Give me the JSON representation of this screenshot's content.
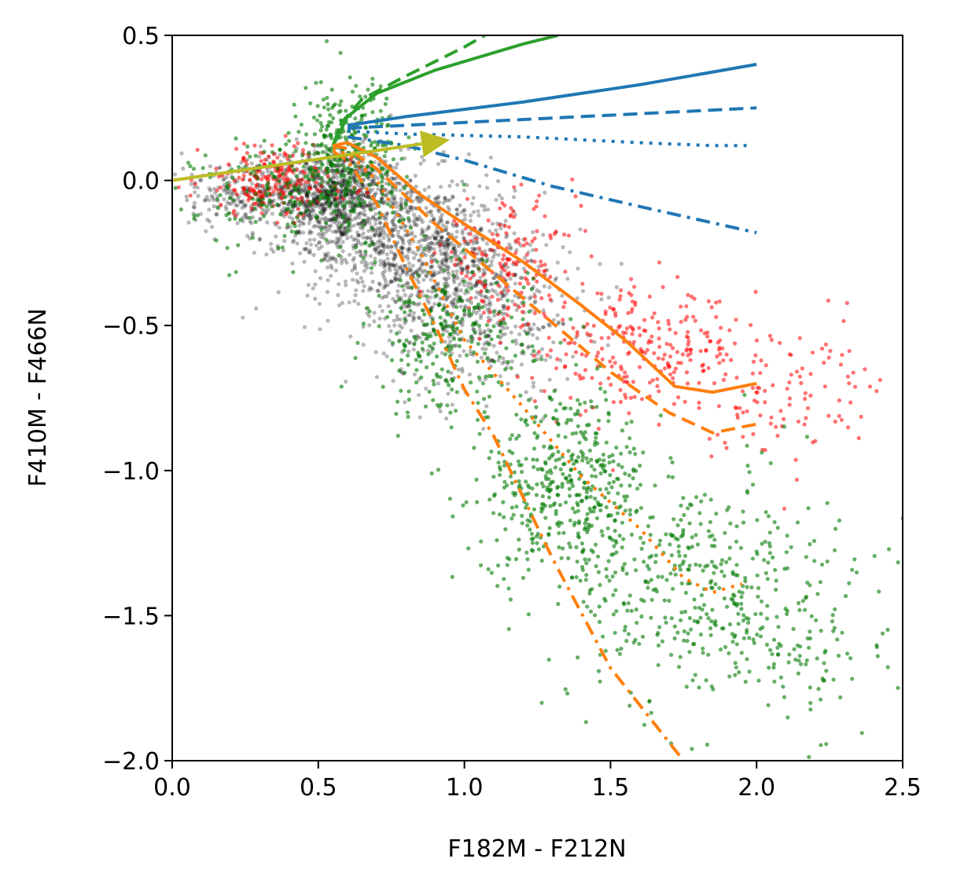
{
  "chart_data": {
    "type": "scatter",
    "title": "",
    "xlabel": "F182M - F212N",
    "ylabel": "F410M - F466N",
    "xlim": [
      0.0,
      2.5
    ],
    "ylim": [
      -2.0,
      0.5
    ],
    "xticks": [
      0.0,
      0.5,
      1.0,
      1.5,
      2.0,
      2.5
    ],
    "xtick_labels": [
      "0.0",
      "0.5",
      "1.0",
      "1.5",
      "2.0",
      "2.5"
    ],
    "yticks": [
      0.5,
      0.0,
      -0.5,
      -1.0,
      -1.5,
      -2.0
    ],
    "ytick_labels": [
      "0.5",
      "0.0",
      "−0.5",
      "−1.0",
      "−1.5",
      "−2.0"
    ],
    "grid": false,
    "legend": "none",
    "scatter_groups": [
      {
        "color": "#000000",
        "opacity": 0.28,
        "clouds": [
          {
            "cx": 0.55,
            "cy": -0.05,
            "sx": 0.12,
            "sy": 0.08,
            "n": 900
          },
          {
            "cx": 0.82,
            "cy": -0.22,
            "sx": 0.18,
            "sy": 0.12,
            "n": 900
          },
          {
            "cx": 1.05,
            "cy": -0.45,
            "sx": 0.17,
            "sy": 0.14,
            "n": 500
          },
          {
            "cx": 0.22,
            "cy": -0.05,
            "sx": 0.12,
            "sy": 0.06,
            "n": 200
          }
        ]
      },
      {
        "color": "#ff0000",
        "opacity": 0.55,
        "clouds": [
          {
            "cx": 0.35,
            "cy": 0.0,
            "sx": 0.13,
            "sy": 0.06,
            "n": 220
          },
          {
            "cx": 1.15,
            "cy": -0.28,
            "sx": 0.12,
            "sy": 0.1,
            "n": 160
          },
          {
            "cx": 1.6,
            "cy": -0.58,
            "sx": 0.18,
            "sy": 0.1,
            "n": 230
          },
          {
            "cx": 2.05,
            "cy": -0.72,
            "sx": 0.22,
            "sy": 0.12,
            "n": 130
          }
        ]
      },
      {
        "color": "#007a00",
        "opacity": 0.6,
        "clouds": [
          {
            "cx": 0.6,
            "cy": 0.12,
            "sx": 0.08,
            "sy": 0.12,
            "n": 260
          },
          {
            "cx": 0.45,
            "cy": -0.05,
            "sx": 0.18,
            "sy": 0.1,
            "n": 220
          },
          {
            "cx": 0.95,
            "cy": -0.55,
            "sx": 0.14,
            "sy": 0.13,
            "n": 260
          },
          {
            "cx": 1.35,
            "cy": -1.05,
            "sx": 0.15,
            "sy": 0.16,
            "n": 450
          },
          {
            "cx": 1.8,
            "cy": -1.4,
            "sx": 0.22,
            "sy": 0.2,
            "n": 420
          },
          {
            "cx": 2.2,
            "cy": -1.6,
            "sx": 0.15,
            "sy": 0.2,
            "n": 80
          }
        ]
      }
    ],
    "lines": [
      {
        "color": "#2ca02c",
        "dash": "",
        "points": [
          [
            0.55,
            0.12
          ],
          [
            0.6,
            0.22
          ],
          [
            0.7,
            0.3
          ],
          [
            0.9,
            0.38
          ],
          [
            1.2,
            0.47
          ],
          [
            1.32,
            0.5
          ]
        ]
      },
      {
        "color": "#2ca02c",
        "dash": "18,9",
        "points": [
          [
            0.55,
            0.12
          ],
          [
            0.58,
            0.2
          ],
          [
            0.65,
            0.28
          ],
          [
            0.8,
            0.36
          ],
          [
            1.0,
            0.46
          ],
          [
            1.07,
            0.5
          ]
        ]
      },
      {
        "color": "#1f77b4",
        "dash": "",
        "points": [
          [
            0.6,
            0.19
          ],
          [
            0.8,
            0.22
          ],
          [
            1.2,
            0.27
          ],
          [
            1.6,
            0.33
          ],
          [
            2.0,
            0.4
          ]
        ]
      },
      {
        "color": "#1f77b4",
        "dash": "18,9",
        "points": [
          [
            0.6,
            0.18
          ],
          [
            0.8,
            0.19
          ],
          [
            1.2,
            0.21
          ],
          [
            1.6,
            0.23
          ],
          [
            2.0,
            0.25
          ]
        ]
      },
      {
        "color": "#1f77b4",
        "dash": "4,8",
        "points": [
          [
            0.6,
            0.17
          ],
          [
            0.8,
            0.16
          ],
          [
            1.2,
            0.15
          ],
          [
            1.6,
            0.13
          ],
          [
            1.85,
            0.12
          ],
          [
            1.98,
            0.12
          ]
        ]
      },
      {
        "color": "#1f77b4",
        "dash": "18,8,4,8",
        "points": [
          [
            0.6,
            0.15
          ],
          [
            0.8,
            0.12
          ],
          [
            1.0,
            0.07
          ],
          [
            1.3,
            -0.02
          ],
          [
            1.6,
            -0.09
          ],
          [
            2.0,
            -0.18
          ]
        ]
      },
      {
        "color": "#ff7f0e",
        "dash": "",
        "points": [
          [
            0.55,
            0.12
          ],
          [
            0.6,
            0.13
          ],
          [
            0.7,
            0.08
          ],
          [
            0.85,
            -0.05
          ],
          [
            1.0,
            -0.15
          ],
          [
            1.2,
            -0.28
          ],
          [
            1.4,
            -0.43
          ],
          [
            1.55,
            -0.55
          ],
          [
            1.72,
            -0.71
          ],
          [
            1.85,
            -0.73
          ],
          [
            2.0,
            -0.7
          ]
        ]
      },
      {
        "color": "#ff7f0e",
        "dash": "18,9",
        "points": [
          [
            0.55,
            0.12
          ],
          [
            0.6,
            0.11
          ],
          [
            0.7,
            0.04
          ],
          [
            0.9,
            -0.15
          ],
          [
            1.1,
            -0.32
          ],
          [
            1.3,
            -0.49
          ],
          [
            1.5,
            -0.66
          ],
          [
            1.7,
            -0.8
          ],
          [
            1.85,
            -0.87
          ],
          [
            2.0,
            -0.84
          ]
        ]
      },
      {
        "color": "#ff7f0e",
        "dash": "4,8",
        "points": [
          [
            0.55,
            0.11
          ],
          [
            0.62,
            0.08
          ],
          [
            0.7,
            0.0
          ],
          [
            0.85,
            -0.25
          ],
          [
            1.0,
            -0.55
          ],
          [
            1.2,
            -0.78
          ],
          [
            1.4,
            -1.02
          ],
          [
            1.6,
            -1.2
          ],
          [
            1.75,
            -1.37
          ],
          [
            1.85,
            -1.42
          ],
          [
            1.95,
            -1.39
          ]
        ]
      },
      {
        "color": "#ff7f0e",
        "dash": "18,8,4,8",
        "points": [
          [
            0.55,
            0.1
          ],
          [
            0.6,
            0.07
          ],
          [
            0.7,
            -0.08
          ],
          [
            0.8,
            -0.3
          ],
          [
            0.9,
            -0.5
          ],
          [
            1.0,
            -0.72
          ],
          [
            1.1,
            -0.88
          ],
          [
            1.3,
            -1.3
          ],
          [
            1.5,
            -1.68
          ],
          [
            1.75,
            -2.0
          ]
        ]
      }
    ],
    "arrow": {
      "color": "#bcbd22",
      "from": [
        0.0,
        0.0
      ],
      "to": [
        0.95,
        0.14
      ]
    }
  }
}
